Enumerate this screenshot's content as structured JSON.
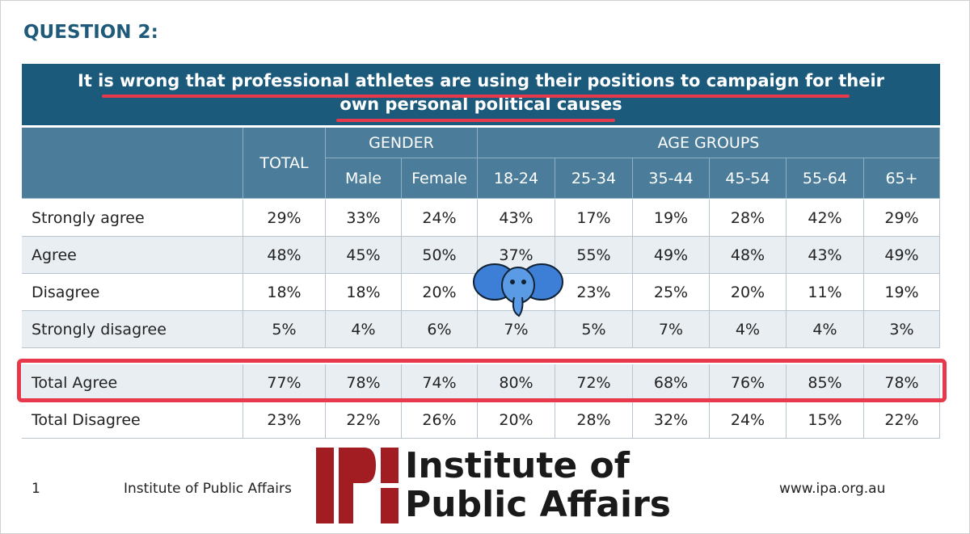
{
  "header": {
    "title": "QUESTION 2:"
  },
  "question": {
    "lines": [
      "It is wrong that professional athletes are using their positions to campaign for their",
      "own personal political causes"
    ]
  },
  "table": {
    "groups": [
      "GENDER",
      "AGE GROUPS"
    ],
    "columns": [
      "TOTAL",
      "Male",
      "Female",
      "18-24",
      "25-34",
      "35-44",
      "45-54",
      "55-64",
      "65+"
    ],
    "rows": [
      [
        "Strongly agree",
        "29%",
        "33%",
        "24%",
        "43%",
        "17%",
        "19%",
        "28%",
        "42%",
        "29%"
      ],
      [
        "Agree",
        "48%",
        "45%",
        "50%",
        "37%",
        "55%",
        "49%",
        "48%",
        "43%",
        "49%"
      ],
      [
        "Disagree",
        "18%",
        "18%",
        "20%",
        null,
        "23%",
        "25%",
        "20%",
        "11%",
        "19%"
      ],
      [
        "Strongly disagree",
        "5%",
        "4%",
        "6%",
        "7%",
        "5%",
        "7%",
        "4%",
        "4%",
        "3%"
      ]
    ],
    "summary_rows": [
      [
        "Total Agree",
        "77%",
        "78%",
        "74%",
        "80%",
        "72%",
        "68%",
        "76%",
        "85%",
        "78%"
      ],
      [
        "Total Disagree",
        "23%",
        "22%",
        "26%",
        "20%",
        "28%",
        "32%",
        "24%",
        "15%",
        "22%"
      ]
    ]
  },
  "footer": {
    "page": "1",
    "org": "Institute of Public Affairs",
    "url": "www.ipa.org.au",
    "logo_lines": [
      "Institute of",
      "Public Affairs"
    ]
  }
}
